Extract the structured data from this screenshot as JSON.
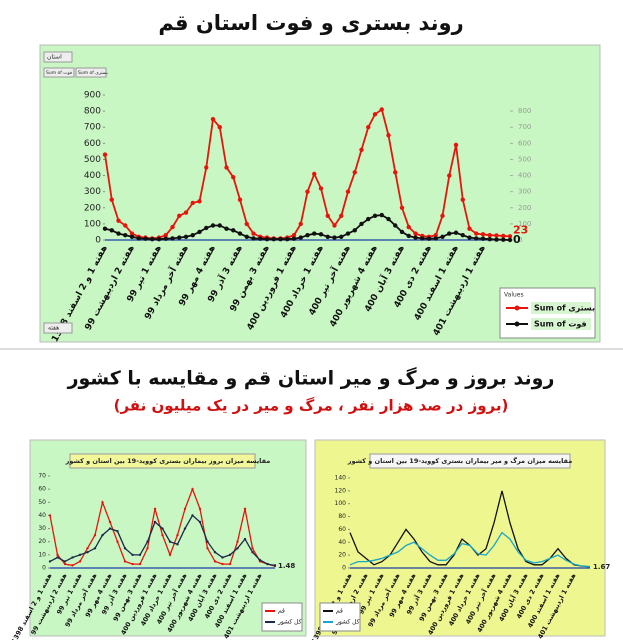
{
  "header": {
    "title": "روند بستری و فوت استان قم",
    "subtitle": "روند بروز و مرگ و میر استان قم و مقایسه با کشور",
    "note": "(بروز در صد هزار نفر ، مرگ و میر در یک میلیون نفر)"
  },
  "controls": {
    "filter": "استان",
    "axis_field": "هفته"
  },
  "chart_data": [
    {
      "type": "line",
      "legend_title": "Values",
      "categories": [
        "هفته 1 و 2 اسفند 1398",
        null,
        null,
        null,
        "هفته 2 اردیبهشت 99",
        null,
        null,
        null,
        "هفته 1 تیر 99",
        null,
        null,
        null,
        "هفته آخر مرداد 99",
        null,
        null,
        null,
        "هفته 4 مهر 99",
        null,
        null,
        null,
        "هفته 3 آذر 99",
        null,
        null,
        null,
        "هفته 3 بهمن 99",
        null,
        null,
        null,
        "هفته 1 فروردین 400",
        null,
        null,
        null,
        "هفته 1 خرداد 400",
        null,
        null,
        null,
        "هفته آخر تیر 400",
        null,
        null,
        null,
        "هفته 4 شهریور 400",
        null,
        null,
        null,
        "هفته 3 آبان 400",
        null,
        null,
        null,
        "هفته 2 دی 400",
        null,
        null,
        null,
        "هفته 1 اسفند 400",
        null,
        null,
        null,
        "هفته 1 اردیبهشت 401",
        null,
        null,
        null,
        null
      ],
      "series": [
        {
          "name": "Sum of بستری",
          "color": "#e8140c",
          "values": [
            530,
            250,
            120,
            90,
            40,
            20,
            15,
            10,
            15,
            30,
            80,
            150,
            170,
            230,
            240,
            450,
            750,
            700,
            450,
            390,
            250,
            100,
            40,
            20,
            15,
            10,
            10,
            15,
            30,
            100,
            300,
            410,
            320,
            150,
            90,
            150,
            300,
            420,
            560,
            700,
            780,
            810,
            650,
            420,
            200,
            80,
            40,
            25,
            20,
            30,
            150,
            400,
            590,
            250,
            70,
            40,
            35,
            30,
            28,
            25,
            23
          ]
        },
        {
          "name": "Sum of فوت",
          "color": "#111111",
          "values": [
            70,
            60,
            40,
            30,
            20,
            10,
            8,
            5,
            5,
            8,
            10,
            15,
            20,
            30,
            50,
            75,
            90,
            90,
            70,
            60,
            40,
            20,
            10,
            8,
            5,
            5,
            5,
            5,
            8,
            15,
            30,
            40,
            35,
            20,
            15,
            20,
            40,
            60,
            100,
            130,
            150,
            155,
            130,
            90,
            50,
            25,
            15,
            10,
            8,
            10,
            20,
            40,
            45,
            30,
            15,
            10,
            8,
            5,
            3,
            2,
            0
          ]
        }
      ],
      "ylim": [
        0,
        900
      ],
      "yticks": [
        0,
        100,
        200,
        300,
        400,
        500,
        600,
        700,
        800,
        900
      ],
      "y2lim": [
        0,
        900
      ],
      "y2ticks": [
        0,
        100,
        200,
        300,
        400,
        500,
        600,
        700,
        800
      ]
    },
    {
      "type": "line",
      "title": "مقایسه میزان بروز بیماران بستری کووید-19 بین استان و کشور",
      "categories": [
        "هفته 1 و 2 اسفند 1398",
        null,
        "هفته 2 اردیبهشت 99",
        null,
        "هفته 1 تیر 99",
        null,
        "هفته آخر مرداد 99",
        null,
        "هفته 4 مهر 99",
        null,
        "هفته 3 آذر 99",
        null,
        "هفته 3 بهمن 99",
        null,
        "هفته 1 فروردین 400",
        null,
        "هفته 1 خرداد 400",
        null,
        "هفته آخر تیر 400",
        null,
        "هفته 4 شهریور 400",
        null,
        "هفته 3 آبان 400",
        null,
        "هفته 2 دی 400",
        null,
        "هفته 1 اسفند 400",
        null,
        "هفته 1 اردیبهشت 401",
        null,
        null
      ],
      "series": [
        {
          "name": "قم",
          "color": "#e8140c",
          "values": [
            40,
            10,
            3,
            2,
            5,
            15,
            25,
            50,
            35,
            20,
            5,
            3,
            3,
            15,
            45,
            25,
            10,
            25,
            45,
            60,
            45,
            15,
            5,
            3,
            3,
            20,
            45,
            15,
            5,
            3,
            1.48
          ]
        },
        {
          "name": "کل کشور",
          "color": "#1a2a4a",
          "values": [
            5,
            8,
            5,
            8,
            10,
            12,
            15,
            25,
            30,
            28,
            15,
            10,
            10,
            20,
            35,
            30,
            20,
            18,
            30,
            40,
            35,
            20,
            12,
            8,
            10,
            15,
            22,
            12,
            6,
            3,
            2
          ]
        }
      ],
      "ylim": [
        0,
        70
      ],
      "yticks": [
        0,
        10,
        20,
        30,
        40,
        50,
        60,
        70
      ]
    },
    {
      "type": "line",
      "title": "مقایسه میزان مرگ و میر بیماران بستری کووید-19 بین استان و کشور",
      "categories": [
        "هفته 1 و 2 اسفند 1398",
        null,
        "هفته 2 اردیبهشت 99",
        null,
        "هفته 1 تیر 99",
        null,
        "هفته آخر مرداد 99",
        null,
        "هفته 4 مهر 99",
        null,
        "هفته 3 آذر 99",
        null,
        "هفته 3 بهمن 99",
        null,
        "هفته 1 فروردین 400",
        null,
        "هفته 1 خرداد 400",
        null,
        "هفته آخر تیر 400",
        null,
        "هفته 4 شهریور 400",
        null,
        "هفته 3 آبان 400",
        null,
        "هفته 2 دی 400",
        null,
        "هفته 1 اسفند 400",
        null,
        "هفته 1 اردیبهشت 401",
        null,
        null
      ],
      "series": [
        {
          "name": "قم",
          "color": "#111111",
          "values": [
            55,
            25,
            15,
            5,
            10,
            20,
            40,
            60,
            45,
            25,
            10,
            5,
            5,
            20,
            45,
            35,
            20,
            30,
            70,
            120,
            70,
            30,
            10,
            5,
            5,
            15,
            30,
            15,
            5,
            3,
            2
          ]
        },
        {
          "name": "کل کشور",
          "color": "#19a7c9",
          "values": [
            5,
            10,
            10,
            12,
            15,
            20,
            25,
            35,
            40,
            30,
            20,
            12,
            12,
            22,
            38,
            35,
            22,
            20,
            35,
            55,
            45,
            25,
            12,
            8,
            10,
            15,
            20,
            12,
            6,
            3,
            1.67
          ]
        }
      ],
      "ylim": [
        0,
        140
      ],
      "yticks": [
        0,
        20,
        40,
        60,
        80,
        100,
        120,
        140
      ]
    }
  ]
}
